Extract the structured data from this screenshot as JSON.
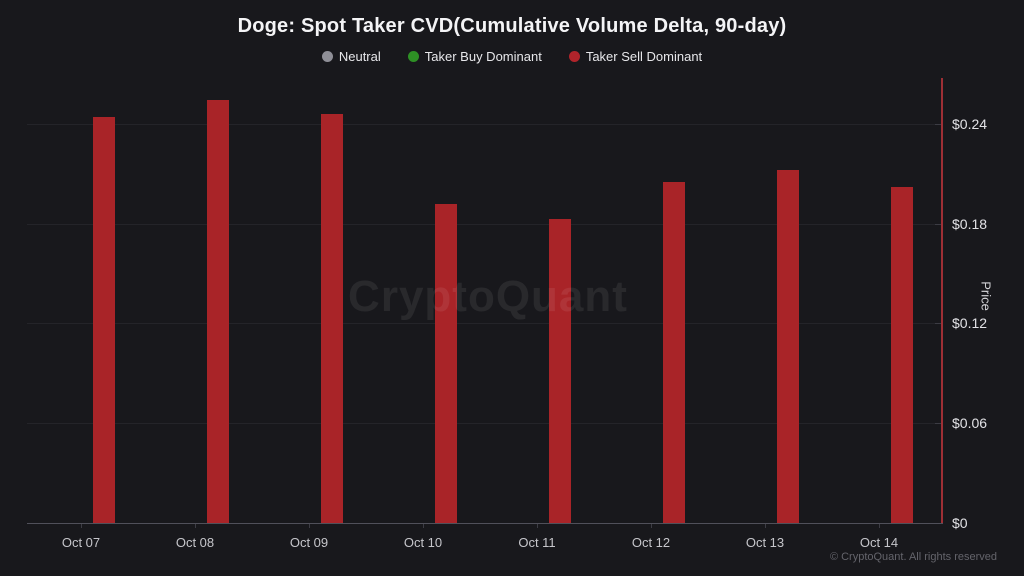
{
  "title": "Doge: Spot Taker CVD(Cumulative Volume Delta, 90-day)",
  "watermark": "CryptoQuant",
  "footer": {
    "copyright": "© CryptoQuant. All rights reserved"
  },
  "legend": {
    "items": [
      {
        "label": "Neutral",
        "color": "#8f8f97"
      },
      {
        "label": "Taker Buy Dominant",
        "color": "#2e9025"
      },
      {
        "label": "Taker Sell Dominant",
        "color": "#b1242b"
      }
    ]
  },
  "chart_data": {
    "type": "bar",
    "title": "Doge: Spot Taker CVD(Cumulative Volume Delta, 90-day)",
    "categories": [
      "Oct 07",
      "Oct 08",
      "Oct 09",
      "Oct 10",
      "Oct 11",
      "Oct 12",
      "Oct 13",
      "Oct 14"
    ],
    "series": [
      {
        "name": "Taker Sell Dominant",
        "values": [
          0.244,
          0.254,
          0.246,
          0.192,
          0.183,
          0.205,
          0.212,
          0.202
        ],
        "color": "#a92428"
      }
    ],
    "xlabel": "",
    "ylabel": "Price",
    "ylim": [
      0,
      0.2675
    ],
    "y_ticks": [
      {
        "value": 0.24,
        "label": "$0.24"
      },
      {
        "value": 0.18,
        "label": "$0.18"
      },
      {
        "value": 0.12,
        "label": "$0.12"
      },
      {
        "value": 0.06,
        "label": "$0.06"
      },
      {
        "value": 0.0,
        "label": "$0"
      }
    ],
    "grid": true,
    "legend_position": "top",
    "bar_color": "#a92428",
    "x_axis_color": "#50505a",
    "y_axis_color": "#9e2f35",
    "background_color": "#18181c"
  }
}
